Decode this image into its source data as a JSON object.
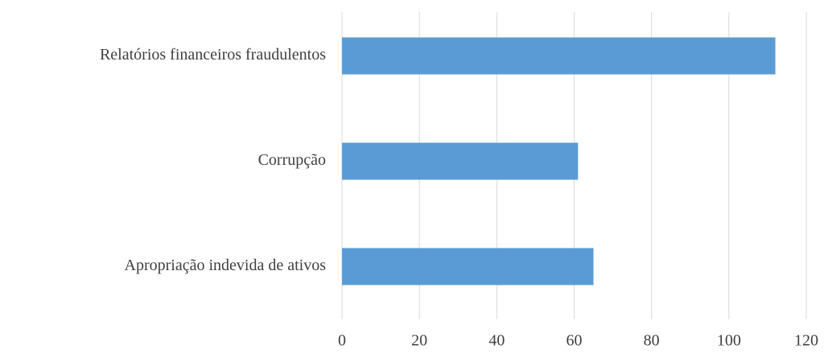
{
  "chart_data": {
    "type": "hbar",
    "categories": [
      "Relatórios financeiros fraudulentos",
      "Corrupção",
      "Apropriação indevida de ativos"
    ],
    "values": [
      112,
      61,
      65
    ],
    "color": "#5b9bd5",
    "xlim": [
      0,
      120
    ],
    "xticks": [
      0,
      20,
      40,
      60,
      80,
      100,
      120
    ],
    "grid": true
  }
}
